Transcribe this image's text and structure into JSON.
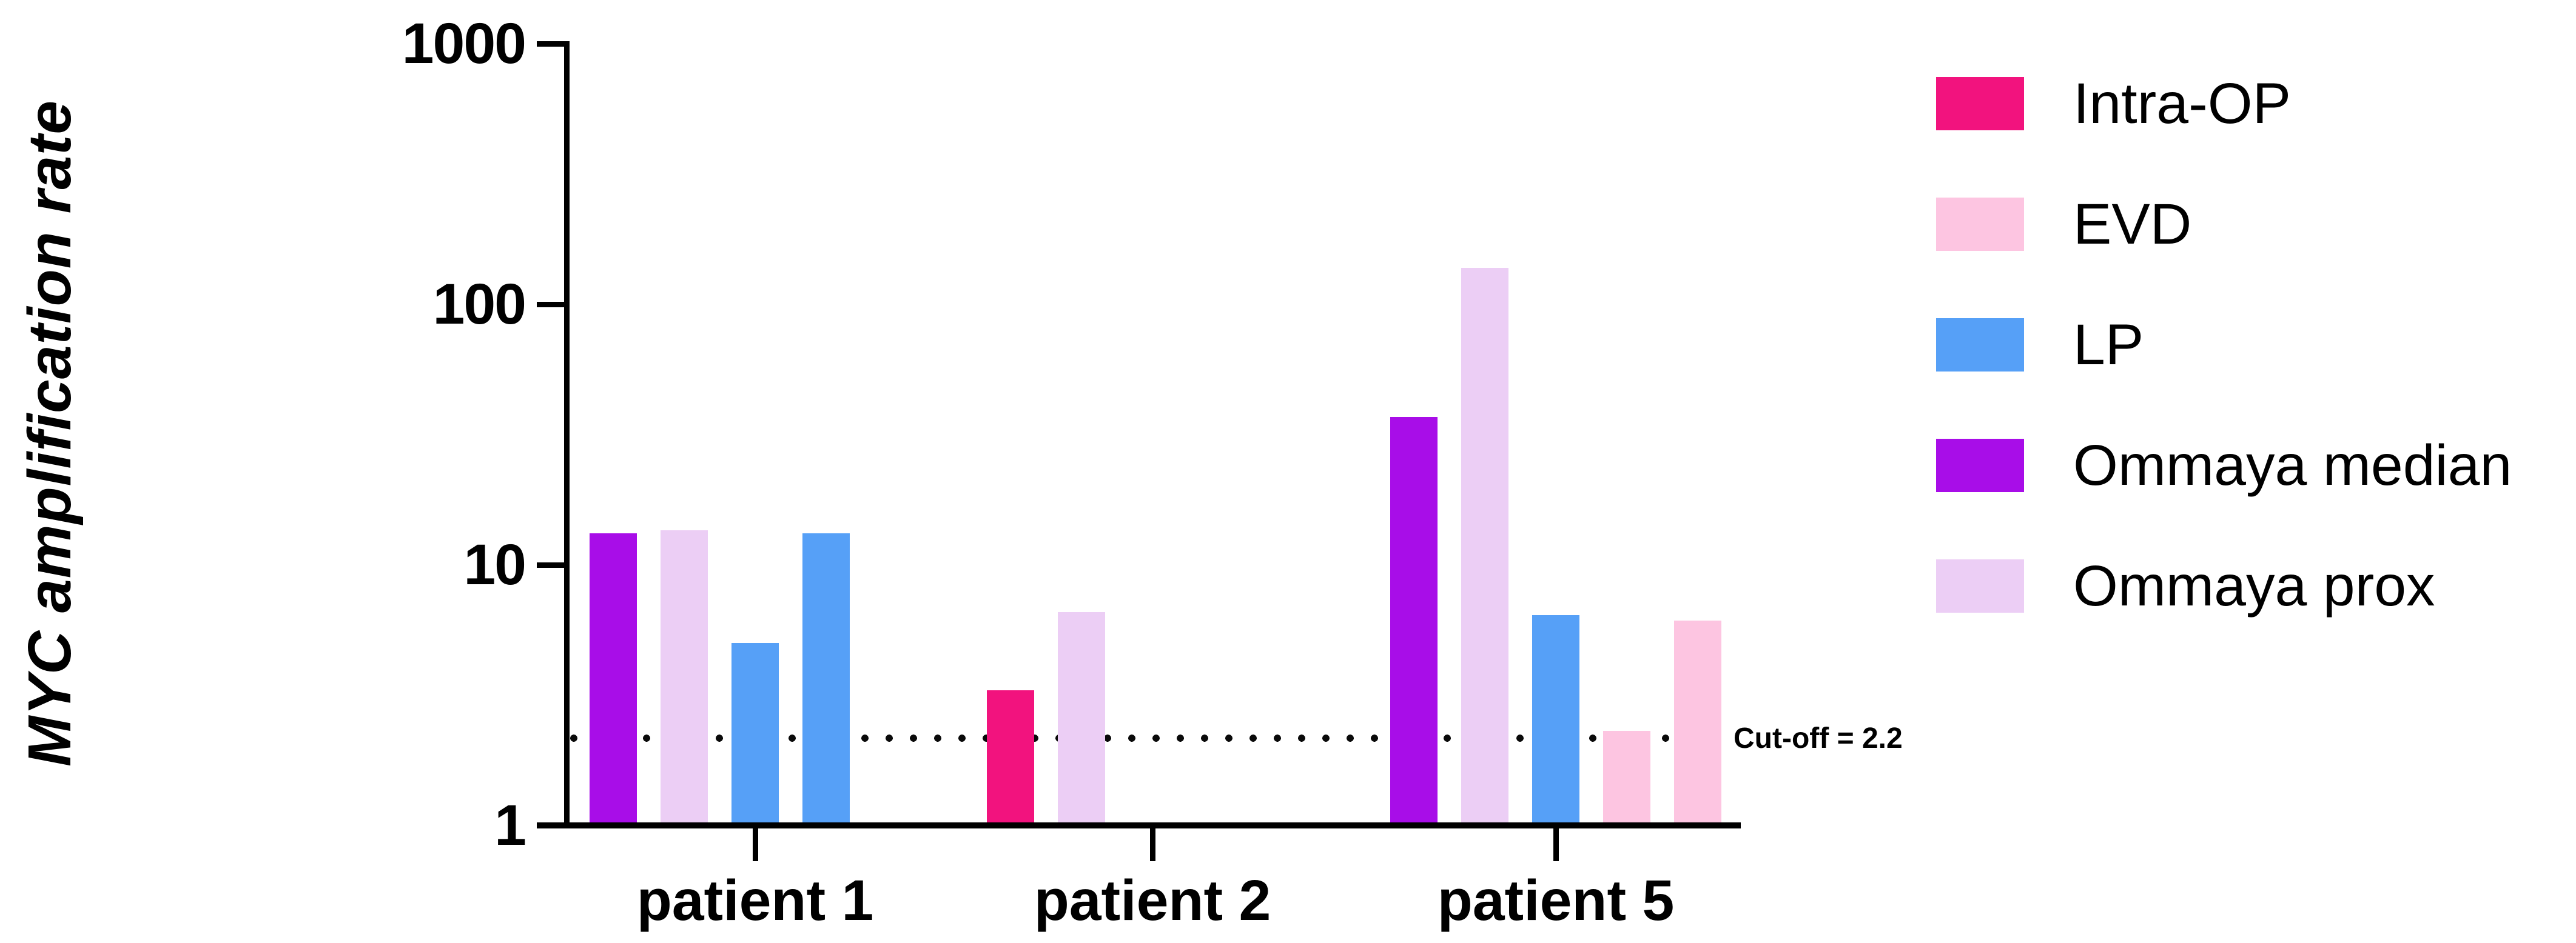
{
  "figure": {
    "background": "#ffffff",
    "text_color": "#000000"
  },
  "y_axis": {
    "title": "MYC amplification rate",
    "tick_labels": [
      "1000",
      "100",
      "10",
      "1"
    ]
  },
  "x_axis": {
    "categories": [
      "patient 1",
      "patient 2",
      "patient 5"
    ]
  },
  "legend": [
    {
      "label": "Intra-OP",
      "color": "#F2137E"
    },
    {
      "label": "EVD",
      "color": "#FDC5E1"
    },
    {
      "label": "LP",
      "color": "#56A0F7"
    },
    {
      "label": "Ommaya median",
      "color": "#A80DE8"
    },
    {
      "label": "Ommaya prox",
      "color": "#ECCEF5"
    }
  ],
  "chart_data": {
    "type": "bar",
    "title": "",
    "ylabel": "MYC amplification rate",
    "xlabel": "",
    "yscale": "log",
    "ylim": [
      1,
      1000
    ],
    "yticks": [
      1000,
      100,
      10,
      1
    ],
    "grid": false,
    "legend_position": "right",
    "categories": [
      "patient 1",
      "patient 2",
      "patient 5"
    ],
    "series": [
      "Intra-OP",
      "EVD",
      "LP",
      "Ommaya median",
      "Ommaya prox"
    ],
    "series_colors": {
      "Intra-OP": "#F2137E",
      "EVD": "#FDC5E1",
      "LP": "#56A0F7",
      "Ommaya median": "#A80DE8",
      "Ommaya prox": "#ECCEF5"
    },
    "bars": [
      {
        "category": "patient 1",
        "slot": 0,
        "series": "Ommaya median",
        "value": 13.2
      },
      {
        "category": "patient 1",
        "slot": 1,
        "series": "Ommaya prox",
        "value": 13.6
      },
      {
        "category": "patient 1",
        "slot": 2,
        "series": "LP",
        "value": 5.0
      },
      {
        "category": "patient 1",
        "slot": 3,
        "series": "LP",
        "value": 13.2
      },
      {
        "category": "patient 2",
        "slot": 0,
        "series": "Intra-OP",
        "value": 3.3
      },
      {
        "category": "patient 2",
        "slot": 1,
        "series": "Ommaya prox",
        "value": 6.6
      },
      {
        "category": "patient 5",
        "slot": 0,
        "series": "Ommaya median",
        "value": 37
      },
      {
        "category": "patient 5",
        "slot": 1,
        "series": "Ommaya prox",
        "value": 138
      },
      {
        "category": "patient 5",
        "slot": 2,
        "series": "LP",
        "value": 6.4
      },
      {
        "category": "patient 5",
        "slot": 3,
        "series": "EVD",
        "value": 2.3
      },
      {
        "category": "patient 5",
        "slot": 4,
        "series": "EVD",
        "value": 6.1
      }
    ],
    "cutoff": {
      "value": 2.2,
      "label": "Cut-off = 2.2"
    }
  }
}
